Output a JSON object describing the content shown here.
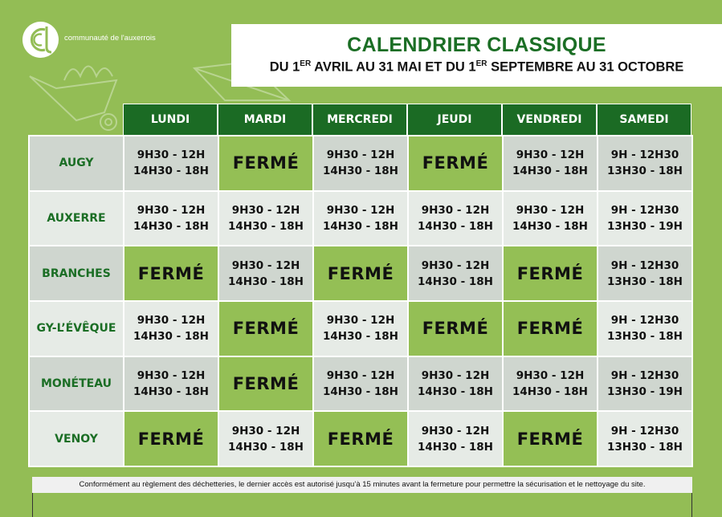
{
  "brand": {
    "name": "communauté de l'auxerrois"
  },
  "header": {
    "title": "CALENDRIER CLASSIQUE",
    "subtitle_parts": [
      "DU 1",
      "ER",
      " AVRIL AU 31 MAI ET DU 1",
      "ER",
      " SEPTEMBRE AU 31 OCTOBRE"
    ]
  },
  "colors": {
    "background": "#93bd55",
    "header_green": "#1b6b24",
    "closed": "#94bf55",
    "row_odd": "#cfd6cf",
    "row_even": "#e6ebe6"
  },
  "days": [
    "LUNDI",
    "MARDI",
    "MERCREDI",
    "JEUDI",
    "VENDREDI",
    "SAMEDI"
  ],
  "rows": [
    {
      "site": "AUGY",
      "cells": [
        [
          "9H30 - 12H",
          "14H30 - 18H"
        ],
        [
          "FERMÉ"
        ],
        [
          "9H30 - 12H",
          "14H30 - 18H"
        ],
        [
          "FERMÉ"
        ],
        [
          "9H30 - 12H",
          "14H30 - 18H"
        ],
        [
          "9H - 12H30",
          "13H30 - 18H"
        ]
      ]
    },
    {
      "site": "AUXERRE",
      "cells": [
        [
          "9H30 - 12H",
          "14H30 - 18H"
        ],
        [
          "9H30 - 12H",
          "14H30 - 18H"
        ],
        [
          "9H30 - 12H",
          "14H30 - 18H"
        ],
        [
          "9H30 - 12H",
          "14H30 - 18H"
        ],
        [
          "9H30 - 12H",
          "14H30 - 18H"
        ],
        [
          "9H - 12H30",
          "13H30 - 19H"
        ]
      ]
    },
    {
      "site": "BRANCHES",
      "cells": [
        [
          "FERMÉ"
        ],
        [
          "9H30 - 12H",
          "14H30 - 18H"
        ],
        [
          "FERMÉ"
        ],
        [
          "9H30 - 12H",
          "14H30 - 18H"
        ],
        [
          "FERMÉ"
        ],
        [
          "9H - 12H30",
          "13H30 - 18H"
        ]
      ]
    },
    {
      "site": "GY-L’ÉVÊQUE",
      "cells": [
        [
          "9H30 - 12H",
          "14H30 - 18H"
        ],
        [
          "FERMÉ"
        ],
        [
          "9H30 - 12H",
          "14H30 - 18H"
        ],
        [
          "FERMÉ"
        ],
        [
          "FERMÉ"
        ],
        [
          "9H - 12H30",
          "13H30 - 18H"
        ]
      ]
    },
    {
      "site": "MONÉTEAU",
      "cells": [
        [
          "9H30 - 12H",
          "14H30 - 18H"
        ],
        [
          "FERMÉ"
        ],
        [
          "9H30 - 12H",
          "14H30 - 18H"
        ],
        [
          "9H30 - 12H",
          "14H30 - 18H"
        ],
        [
          "9H30 - 12H",
          "14H30 - 18H"
        ],
        [
          "9H - 12H30",
          "13H30 - 19H"
        ]
      ]
    },
    {
      "site": "VENOY",
      "cells": [
        [
          "FERMÉ"
        ],
        [
          "9H30 - 12H",
          "14H30 - 18H"
        ],
        [
          "FERMÉ"
        ],
        [
          "9H30 - 12H",
          "14H30 - 18H"
        ],
        [
          "FERMÉ"
        ],
        [
          "9H - 12H30",
          "13H30 - 18H"
        ]
      ]
    }
  ],
  "footer": {
    "note": "Conformément au règlement des déchetteries, le dernier accès est autorisé jusqu’à 15 minutes avant la fermeture pour permettre la sécurisation et le nettoyage du site."
  }
}
